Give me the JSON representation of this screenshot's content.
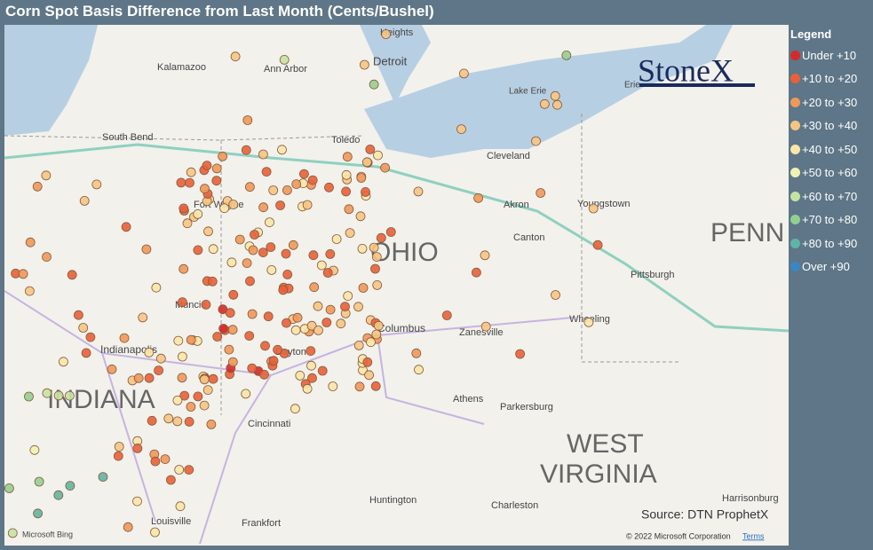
{
  "header": {
    "title": "Corn Spot Basis Difference from Last Month (Cents/Bushel)"
  },
  "logo": "StoneX",
  "legend": {
    "title": "Legend",
    "items": [
      {
        "label": "Under +10",
        "color": "#d62a2a"
      },
      {
        "label": "+10 to +20",
        "color": "#e8603a"
      },
      {
        "label": "+20 to +30",
        "color": "#f0985a"
      },
      {
        "label": "+30 to +40",
        "color": "#f6c584"
      },
      {
        "label": "+40 to +50",
        "color": "#fbe5a8"
      },
      {
        "label": "+50 to +60",
        "color": "#eef3b4"
      },
      {
        "label": "+60 to +70",
        "color": "#c5e3a3"
      },
      {
        "label": "+70 to +80",
        "color": "#93cf91"
      },
      {
        "label": "+80 to +90",
        "color": "#5fb5a3"
      },
      {
        "label": "Over +90",
        "color": "#3b86c4"
      }
    ]
  },
  "map_labels": [
    "Heights",
    "Detroit",
    "Kalamazoo",
    "Ann Arbor",
    "Lake Erie",
    "South Bend",
    "Toledo",
    "Cleveland",
    "Fort Wayne",
    "Akron",
    "Youngstown",
    "Canton",
    "OHIO",
    "PENN",
    "Pittsburgh",
    "Muncie",
    "Wheeling",
    "Columbus",
    "Zanesville",
    "Indianapolis",
    "Dayton",
    "INDIANA",
    "Athens",
    "Parkersburg",
    "Cincinnati",
    "WEST",
    "VIRGINIA",
    "Huntington",
    "Charleston",
    "Louisville",
    "Frankfort",
    "Harrisonburg",
    "Erie"
  ],
  "source": "Source: DTN ProphetX",
  "copyright": "© 2022 Microsoft Corporation",
  "terms": "Terms",
  "bing": "Microsoft Bing"
}
